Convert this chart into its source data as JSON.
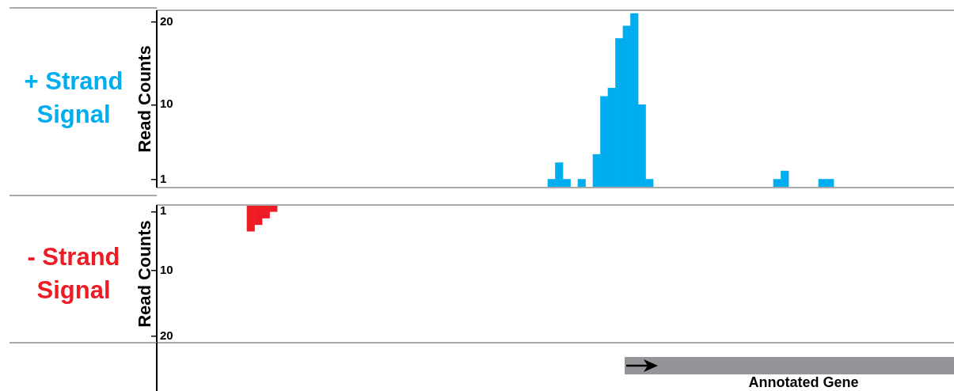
{
  "chart_data": [
    {
      "type": "bar",
      "title": "+ Strand Signal",
      "ylabel": "Read Counts",
      "categories": [
        null,
        null,
        null,
        null,
        null,
        null,
        null,
        null,
        null,
        null,
        null,
        null,
        null,
        null,
        null,
        null,
        null,
        null,
        null,
        null,
        null,
        null,
        null,
        null,
        null,
        null,
        null,
        null,
        null,
        null,
        null,
        null,
        null,
        null,
        null,
        null,
        null,
        null,
        null,
        null,
        null,
        null,
        null,
        null,
        null,
        null,
        null,
        null,
        null,
        null,
        null,
        null,
        null,
        null,
        null,
        null,
        null,
        null,
        null,
        null,
        null,
        null,
        null,
        null,
        null,
        null,
        null,
        null,
        null,
        null,
        null,
        null,
        null,
        null,
        null,
        null,
        null,
        null,
        null,
        null,
        null,
        null,
        null,
        null,
        null,
        null,
        null,
        null,
        null,
        null,
        null,
        null,
        null,
        null,
        null,
        null,
        null,
        null,
        null,
        null,
        null,
        null,
        null,
        null,
        null,
        null
      ],
      "series": [
        {
          "color": "#00aeef",
          "values": [
            0,
            0,
            0,
            0,
            0,
            0,
            0,
            0,
            0,
            0,
            0,
            0,
            0,
            0,
            0,
            0,
            0,
            0,
            0,
            0,
            0,
            0,
            0,
            0,
            0,
            0,
            0,
            0,
            0,
            0,
            0,
            0,
            0,
            0,
            0,
            0,
            0,
            0,
            0,
            0,
            0,
            0,
            0,
            0,
            0,
            0,
            0,
            0,
            0,
            0,
            0,
            0,
            1,
            3,
            1,
            0,
            1,
            0,
            4,
            11,
            12,
            18,
            19.5,
            21,
            10,
            1,
            0,
            0,
            0,
            0,
            0,
            0,
            0,
            0,
            0,
            0,
            0,
            0,
            0,
            0,
            0,
            0,
            1,
            2,
            0,
            0,
            0,
            0,
            1,
            1,
            0,
            0,
            0,
            0,
            0,
            0,
            0,
            0,
            0,
            0,
            0,
            0,
            0,
            0,
            0,
            0
          ]
        }
      ],
      "ylim": [
        0,
        21.4
      ],
      "yticks": [
        1,
        10,
        20
      ]
    },
    {
      "type": "bar",
      "title": "- Strand Signal",
      "ylabel": "Read Counts",
      "categories": [
        null,
        null,
        null,
        null,
        null,
        null,
        null,
        null,
        null,
        null,
        null,
        null,
        null,
        null,
        null,
        null,
        null,
        null,
        null,
        null,
        null,
        null,
        null,
        null,
        null,
        null,
        null,
        null,
        null,
        null,
        null,
        null,
        null,
        null,
        null,
        null,
        null,
        null,
        null,
        null,
        null,
        null,
        null,
        null,
        null,
        null,
        null,
        null,
        null,
        null,
        null,
        null,
        null,
        null,
        null,
        null,
        null,
        null,
        null,
        null,
        null,
        null,
        null,
        null,
        null,
        null,
        null,
        null,
        null,
        null,
        null,
        null,
        null,
        null,
        null,
        null,
        null,
        null,
        null,
        null,
        null,
        null,
        null,
        null,
        null,
        null,
        null,
        null,
        null,
        null,
        null,
        null,
        null,
        null,
        null,
        null,
        null,
        null,
        null,
        null,
        null,
        null,
        null,
        null,
        null,
        null
      ],
      "series": [
        {
          "color": "#ed1c24",
          "values": [
            0,
            0,
            0,
            0,
            0,
            0,
            0,
            0,
            0,
            0,
            0,
            0,
            4,
            3,
            2,
            1,
            0,
            0,
            0,
            0,
            0,
            0,
            0,
            0,
            0,
            0,
            0,
            0,
            0,
            0,
            0,
            0,
            0,
            0,
            0,
            0,
            0,
            0,
            0,
            0,
            0,
            0,
            0,
            0,
            0,
            0,
            0,
            0,
            0,
            0,
            0,
            0,
            0,
            0,
            0,
            0,
            0,
            0,
            0,
            0,
            0,
            0,
            0,
            0,
            0,
            0,
            0,
            0,
            0,
            0,
            0,
            0,
            0,
            0,
            0,
            0,
            0,
            0,
            0,
            0,
            0,
            0,
            0,
            0,
            0,
            0,
            0,
            0,
            0,
            0,
            0,
            0,
            0,
            0,
            0,
            0,
            0,
            0,
            0,
            0,
            0,
            0,
            0,
            0,
            0,
            0
          ]
        }
      ],
      "ylim": [
        21,
        0
      ],
      "yticks": [
        1,
        10,
        20
      ],
      "annotations": [
        "Annotated Gene"
      ]
    }
  ]
}
